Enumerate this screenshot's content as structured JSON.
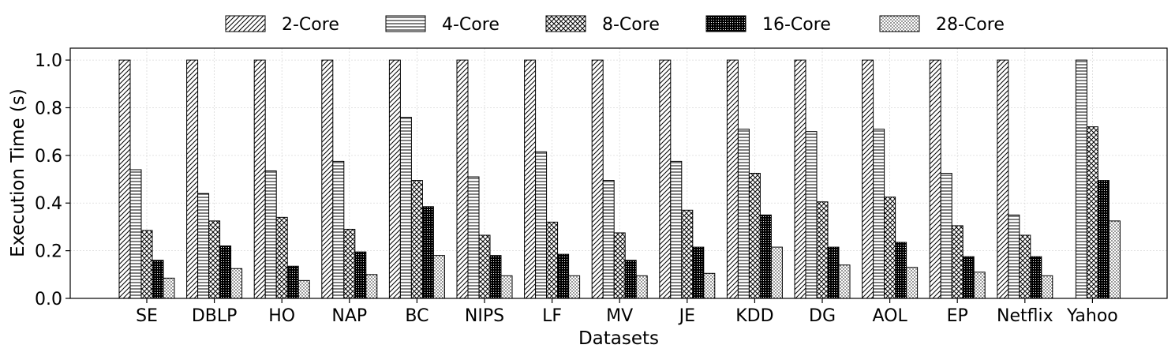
{
  "chart_data": {
    "type": "bar",
    "title": "",
    "xlabel": "Datasets",
    "ylabel": "Execution Time (s)",
    "ylim": [
      0,
      1.05
    ],
    "yticks": [
      0.0,
      0.2,
      0.4,
      0.6,
      0.8,
      1.0
    ],
    "ytick_labels": [
      "0.0",
      "0.2",
      "0.4",
      "0.6",
      "0.8",
      "1.0"
    ],
    "grid": true,
    "legend_position": "top-center",
    "categories": [
      "SE",
      "DBLP",
      "HO",
      "NAP",
      "BC",
      "NIPS",
      "LF",
      "MV",
      "JE",
      "KDD",
      "DG",
      "AOL",
      "EP",
      "Netflix",
      "Yahoo"
    ],
    "series": [
      {
        "name": "2-Core",
        "pattern": "diagonal",
        "values": [
          1.0,
          1.0,
          1.0,
          1.0,
          1.0,
          1.0,
          1.0,
          1.0,
          1.0,
          1.0,
          1.0,
          1.0,
          1.0,
          1.0,
          null
        ]
      },
      {
        "name": "4-Core",
        "pattern": "horizontal",
        "values": [
          0.54,
          0.44,
          0.535,
          0.575,
          0.76,
          0.51,
          0.615,
          0.495,
          0.575,
          0.71,
          0.7,
          0.71,
          0.525,
          0.35,
          1.0
        ]
      },
      {
        "name": "8-Core",
        "pattern": "crosshatch",
        "values": [
          0.285,
          0.325,
          0.34,
          0.29,
          0.495,
          0.265,
          0.32,
          0.275,
          0.37,
          0.525,
          0.405,
          0.425,
          0.305,
          0.265,
          0.72
        ]
      },
      {
        "name": "16-Core",
        "pattern": "dense",
        "values": [
          0.16,
          0.22,
          0.135,
          0.195,
          0.385,
          0.18,
          0.185,
          0.16,
          0.215,
          0.35,
          0.215,
          0.235,
          0.175,
          0.175,
          0.495
        ]
      },
      {
        "name": "28-Core",
        "pattern": "dots",
        "values": [
          0.085,
          0.125,
          0.075,
          0.1,
          0.18,
          0.095,
          0.095,
          0.095,
          0.105,
          0.215,
          0.14,
          0.13,
          0.11,
          0.095,
          0.325
        ]
      }
    ],
    "colors": {
      "bar_fill": "#ffffff",
      "bar_stroke": "#000000",
      "grid": "#d9d9d9"
    }
  }
}
